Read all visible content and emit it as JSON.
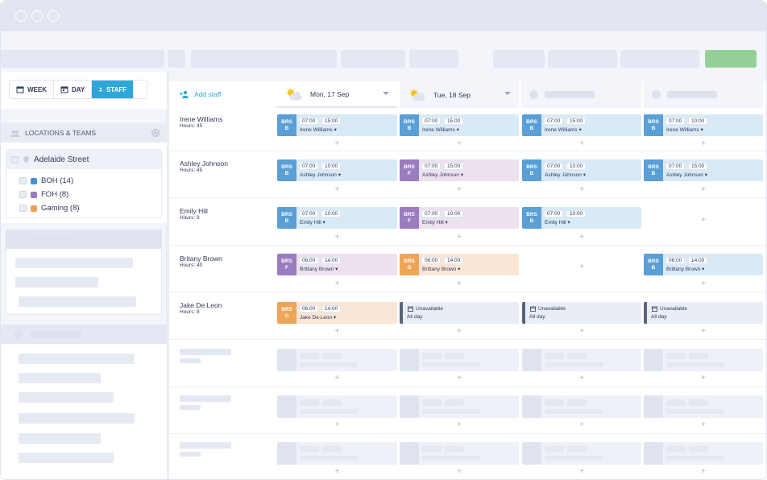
{
  "view_switch": {
    "week": "WEEK",
    "day": "DAY",
    "staff": "STAFF"
  },
  "sidebar": {
    "section_title": "LOCATIONS & TEAMS",
    "location": "Adelaide Street",
    "teams": [
      {
        "label": "BOH (14)",
        "color": "#4a90d9"
      },
      {
        "label": "FOH (8)",
        "color": "#9b7cc0"
      },
      {
        "label": "Gaming (8)",
        "color": "#f0a150"
      }
    ]
  },
  "main": {
    "add_staff": "Add staff",
    "days": [
      {
        "label": "Mon, 17 Sep"
      },
      {
        "label": "Tue, 18 Sep"
      }
    ]
  },
  "colors": {
    "boh": "#5a9fd6",
    "foh": "#9b7cc0",
    "gaming": "#efa556",
    "boh_bg": "#d9eaf7",
    "foh_bg": "#ece1ef",
    "gaming_bg": "#fbe6d5"
  },
  "staff": [
    {
      "name": "Irene Williams",
      "hours": "Hours: 45"
    },
    {
      "name": "Ashley Johnson",
      "hours": "Hours: 45"
    },
    {
      "name": "Emily Hill",
      "hours": "Hours: 9"
    },
    {
      "name": "Britany Brown",
      "hours": "Hours: 40"
    },
    {
      "name": "Jake De Leon",
      "hours": "Hours: 8"
    }
  ],
  "shifts": {
    "r0": [
      {
        "b1": "BRS",
        "b2": "B",
        "start": "07:00",
        "end": "15:00",
        "who": "Irene Williams ▾"
      },
      {
        "b1": "BRS",
        "b2": "B",
        "start": "07:00",
        "end": "15:00",
        "who": "Irene Williams ▾"
      },
      {
        "b1": "BRS",
        "b2": "B",
        "start": "07:00",
        "end": "15:00",
        "who": "Irene Williams ▾"
      },
      {
        "b1": "BRS",
        "b2": "B",
        "start": "07:00",
        "end": "10:00",
        "who": "Irene Williams ▾"
      }
    ],
    "r1": [
      {
        "b1": "BRS",
        "b2": "B",
        "start": "07:00",
        "end": "10:00",
        "who": "Ashley Johnson ▾"
      },
      {
        "b1": "BRS",
        "b2": "F",
        "start": "07:00",
        "end": "15:00",
        "who": "Ashley Johnson ▾"
      },
      {
        "b1": "BRS",
        "b2": "B",
        "start": "07:00",
        "end": "10:00",
        "who": "Ashley Johnson ▾"
      },
      {
        "b1": "BRS",
        "b2": "B",
        "start": "07:00",
        "end": "15:00",
        "who": "Ashley Johnson ▾"
      }
    ],
    "r2": [
      {
        "b1": "BRS",
        "b2": "B",
        "start": "07:00",
        "end": "10:00",
        "who": "Emily Hill ▾"
      },
      {
        "b1": "BRS",
        "b2": "F",
        "start": "07:00",
        "end": "10:00",
        "who": "Emily Hill ▾"
      },
      {
        "b1": "BRS",
        "b2": "B",
        "start": "07:00",
        "end": "10:00",
        "who": "Emily Hill ▾"
      }
    ],
    "r3": [
      {
        "b1": "BRS",
        "b2": "F",
        "start": "06:00",
        "end": "14:00",
        "who": "Brittany Brown ▾"
      },
      {
        "b1": "BRS",
        "b2": "G",
        "start": "06:00",
        "end": "14:00",
        "who": "Brittany Brown ▾"
      },
      {
        "b1": "BRS",
        "b2": "B",
        "start": "06:00",
        "end": "14:00",
        "who": "Brittany Brown ▾"
      }
    ],
    "r4": [
      {
        "b1": "BRS",
        "b2": "G",
        "start": "06:00",
        "end": "14:00",
        "who": "Jake De Leon ▾"
      }
    ]
  },
  "unavailable": {
    "title": "Unavailable",
    "sub": "All day"
  },
  "plus": "+"
}
